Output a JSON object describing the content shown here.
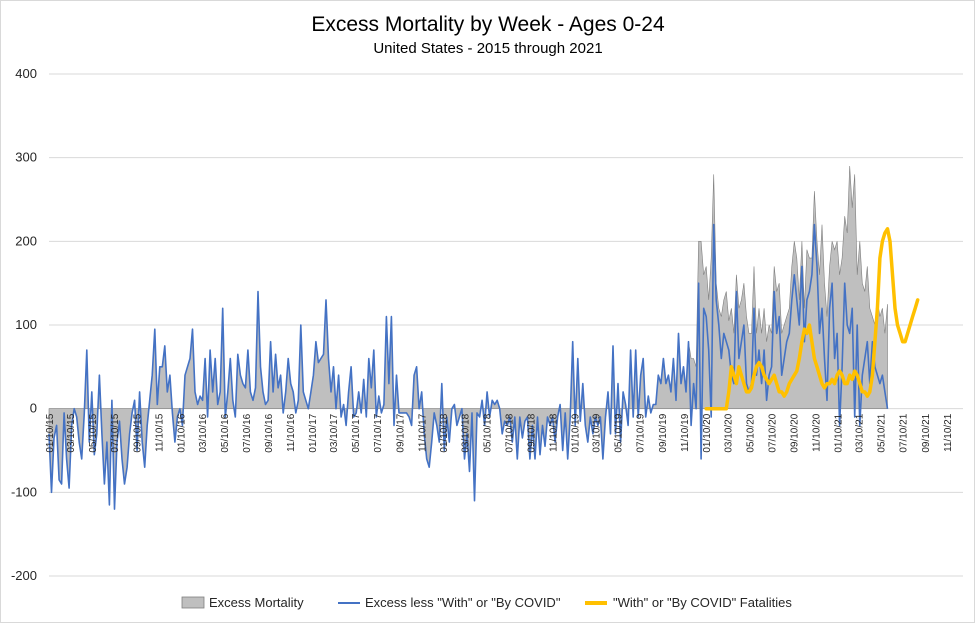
{
  "chart_data": {
    "type": "area",
    "title": "Excess Mortality by Week - Ages 0-24",
    "subtitle": "United States - 2015 through 2021",
    "xlabel": "",
    "ylabel": "",
    "ylim": [
      -200,
      400
    ],
    "yticks": [
      -200,
      -100,
      0,
      100,
      200,
      300,
      400
    ],
    "grid": true,
    "legend_position": "bottom",
    "x_start": "2015-01-10",
    "x_end": "2021-12-25",
    "xtick_labels": [
      "01/10/15",
      "03/10/15",
      "05/10/15",
      "07/10/15",
      "09/10/15",
      "11/10/15",
      "01/10/16",
      "03/10/16",
      "05/10/16",
      "07/10/16",
      "09/10/16",
      "11/10/16",
      "01/10/17",
      "03/10/17",
      "05/10/17",
      "07/10/17",
      "09/10/17",
      "11/10/17",
      "01/10/18",
      "03/10/18",
      "05/10/18",
      "07/10/18",
      "09/10/18",
      "11/10/18",
      "01/10/19",
      "03/10/19",
      "05/10/19",
      "07/10/19",
      "09/10/19",
      "11/10/19",
      "01/10/20",
      "03/10/20",
      "05/10/20",
      "07/10/20",
      "09/10/20",
      "11/10/20",
      "01/10/21",
      "03/10/21",
      "05/10/21",
      "07/10/21",
      "09/10/21",
      "11/10/21"
    ],
    "colors": {
      "excess_fill": "#bfbfbf",
      "excess_edge": "#7f7f7f",
      "excess_less": "#4472c4",
      "covid": "#ffc000"
    },
    "series": [
      {
        "name": "Excess Mortality",
        "type": "area",
        "x_start": "2015-01-10",
        "step_days": 7,
        "values": [
          -30,
          -100,
          -35,
          -20,
          -85,
          -90,
          -5,
          -60,
          -95,
          -20,
          0,
          -10,
          -40,
          -60,
          -5,
          70,
          -40,
          20,
          -55,
          -30,
          40,
          -30,
          -90,
          -40,
          -115,
          10,
          -120,
          -40,
          -15,
          -60,
          -90,
          -70,
          -30,
          -5,
          10,
          -50,
          20,
          -40,
          -70,
          -20,
          10,
          40,
          95,
          5,
          50,
          50,
          75,
          20,
          40,
          -5,
          -40,
          -10,
          0,
          -20,
          40,
          50,
          60,
          95,
          20,
          5,
          15,
          10,
          60,
          -10,
          70,
          20,
          60,
          5,
          20,
          120,
          -10,
          20,
          60,
          10,
          -10,
          65,
          40,
          30,
          25,
          70,
          20,
          10,
          25,
          140,
          50,
          20,
          5,
          10,
          80,
          20,
          65,
          25,
          40,
          -5,
          20,
          60,
          30,
          20,
          -5,
          10,
          100,
          20,
          10,
          0,
          20,
          40,
          80,
          55,
          60,
          65,
          130,
          60,
          20,
          50,
          0,
          40,
          -10,
          5,
          -20,
          20,
          50,
          -10,
          -5,
          20,
          -5,
          35,
          -10,
          60,
          25,
          70,
          -10,
          15,
          -5,
          5,
          110,
          30,
          110,
          -20,
          40,
          -5,
          -5,
          -5,
          -5,
          -10,
          -20,
          40,
          50,
          0,
          20,
          -30,
          -60,
          -70,
          -40,
          -5,
          -20,
          -40,
          30,
          -50,
          -10,
          -40,
          0,
          5,
          -20,
          -10,
          0,
          -60,
          -30,
          -75,
          -5,
          -110,
          -5,
          -10,
          10,
          -20,
          20,
          -10,
          10,
          5,
          10,
          0,
          -30,
          -15,
          -20,
          -10,
          -40,
          -10,
          -60,
          -10,
          -35,
          -15,
          -10,
          -60,
          -20,
          -60,
          -10,
          -55,
          -20,
          -45,
          -10,
          -20,
          -10,
          -40,
          -10,
          5,
          -50,
          -5,
          -60,
          -10,
          80,
          -20,
          60,
          -15,
          30,
          -20,
          -40,
          -10,
          -30,
          -10,
          -20,
          -10,
          -60,
          -10,
          20,
          -30,
          75,
          -30,
          30,
          -40,
          20,
          5,
          -20,
          70,
          -10,
          70,
          -10,
          40,
          60,
          -10,
          15,
          -5,
          5,
          5,
          40,
          30,
          60,
          30,
          40,
          20,
          60,
          10,
          90,
          30,
          50,
          20,
          80,
          60,
          60,
          50,
          200,
          200,
          160,
          170,
          130,
          180,
          280,
          150,
          120,
          110,
          130,
          140,
          105,
          120,
          90,
          160,
          120,
          130,
          150,
          110,
          90,
          90,
          170,
          90,
          120,
          90,
          120,
          80,
          100,
          90,
          170,
          140,
          150,
          90,
          100,
          110,
          120,
          170,
          200,
          180,
          130,
          200,
          120,
          190,
          180,
          180,
          260,
          200,
          160,
          220,
          150,
          110,
          170,
          200,
          190,
          200,
          160,
          180,
          230,
          210,
          290,
          240,
          280,
          160,
          200,
          150,
          140,
          170,
          120,
          110,
          100,
          130,
          110,
          120,
          90,
          125
        ]
      },
      {
        "name": "Excess less \"With\" or \"By COVID\"",
        "type": "line",
        "x_start": "2015-01-10",
        "step_days": 7,
        "values": [
          -30,
          -100,
          -35,
          -20,
          -85,
          -90,
          -5,
          -60,
          -95,
          -20,
          0,
          -10,
          -40,
          -60,
          -5,
          70,
          -40,
          20,
          -55,
          -30,
          40,
          -30,
          -90,
          -40,
          -115,
          10,
          -120,
          -40,
          -15,
          -60,
          -90,
          -70,
          -30,
          -5,
          10,
          -50,
          20,
          -40,
          -70,
          -20,
          10,
          40,
          95,
          5,
          50,
          50,
          75,
          20,
          40,
          -5,
          -40,
          -10,
          0,
          -20,
          40,
          50,
          60,
          95,
          20,
          5,
          15,
          10,
          60,
          -10,
          70,
          20,
          60,
          5,
          20,
          120,
          -10,
          20,
          60,
          10,
          -10,
          65,
          40,
          30,
          25,
          70,
          20,
          10,
          25,
          140,
          50,
          20,
          5,
          10,
          80,
          20,
          65,
          25,
          40,
          -5,
          20,
          60,
          30,
          20,
          -5,
          10,
          100,
          20,
          10,
          0,
          20,
          40,
          80,
          55,
          60,
          65,
          130,
          60,
          20,
          50,
          0,
          40,
          -10,
          5,
          -20,
          20,
          50,
          -10,
          -5,
          20,
          -5,
          35,
          -10,
          60,
          25,
          70,
          -10,
          15,
          -5,
          5,
          110,
          30,
          110,
          -20,
          40,
          -5,
          -5,
          -5,
          -5,
          -10,
          -20,
          40,
          50,
          0,
          20,
          -30,
          -60,
          -70,
          -40,
          -5,
          -20,
          -40,
          30,
          -50,
          -10,
          -40,
          0,
          5,
          -20,
          -10,
          0,
          -60,
          -30,
          -75,
          -5,
          -110,
          -5,
          -10,
          10,
          -20,
          20,
          -10,
          10,
          5,
          10,
          0,
          -30,
          -15,
          -20,
          -10,
          -40,
          -10,
          -60,
          -10,
          -35,
          -15,
          -10,
          -60,
          -20,
          -60,
          -10,
          -55,
          -20,
          -45,
          -10,
          -20,
          -10,
          -40,
          -10,
          5,
          -50,
          -5,
          -60,
          -10,
          80,
          -20,
          60,
          -15,
          30,
          -20,
          -40,
          -10,
          -30,
          -10,
          -20,
          -10,
          -60,
          -10,
          20,
          -30,
          75,
          -30,
          30,
          -40,
          20,
          5,
          -20,
          70,
          -10,
          70,
          -10,
          40,
          60,
          -10,
          15,
          -5,
          5,
          5,
          40,
          30,
          60,
          30,
          40,
          20,
          60,
          10,
          90,
          30,
          50,
          20,
          80,
          -20,
          30,
          0,
          150,
          -60,
          120,
          110,
          70,
          -10,
          220,
          130,
          100,
          60,
          90,
          80,
          70,
          40,
          30,
          140,
          60,
          80,
          100,
          30,
          20,
          30,
          120,
          40,
          70,
          30,
          70,
          10,
          40,
          50,
          140,
          90,
          110,
          40,
          60,
          80,
          90,
          130,
          160,
          130,
          100,
          170,
          80,
          130,
          140,
          160,
          220,
          170,
          90,
          120,
          60,
          10,
          120,
          150,
          60,
          90,
          -20,
          50,
          150,
          100,
          90,
          120,
          -10,
          100,
          -20,
          40,
          60,
          80,
          30,
          80,
          50,
          40,
          30,
          40,
          20,
          0
        ]
      },
      {
        "name": "\"With\" or \"By COVID\" Fatalities",
        "type": "line",
        "x_start": "2020-01-11",
        "step_days": 7,
        "values": [
          0,
          0,
          0,
          0,
          0,
          0,
          0,
          0,
          0,
          20,
          50,
          40,
          30,
          50,
          40,
          30,
          20,
          20,
          25,
          40,
          50,
          55,
          50,
          40,
          35,
          30,
          35,
          40,
          30,
          20,
          20,
          15,
          20,
          30,
          35,
          40,
          45,
          60,
          80,
          95,
          90,
          100,
          80,
          60,
          50,
          40,
          30,
          25,
          30,
          30,
          35,
          30,
          40,
          45,
          40,
          30,
          30,
          40,
          35,
          45,
          40,
          30,
          20,
          20,
          15,
          20,
          40,
          80,
          120,
          180,
          200,
          210,
          215,
          200,
          160,
          120,
          100,
          90,
          80,
          80,
          90,
          100,
          110,
          120,
          130
        ]
      }
    ],
    "legend": [
      {
        "label": "Excess Mortality",
        "symbol": "area"
      },
      {
        "label": "Excess less \"With\" or \"By COVID\"",
        "symbol": "line"
      },
      {
        "label": "\"With\" or \"By COVID\" Fatalities",
        "symbol": "thick-line"
      }
    ]
  }
}
